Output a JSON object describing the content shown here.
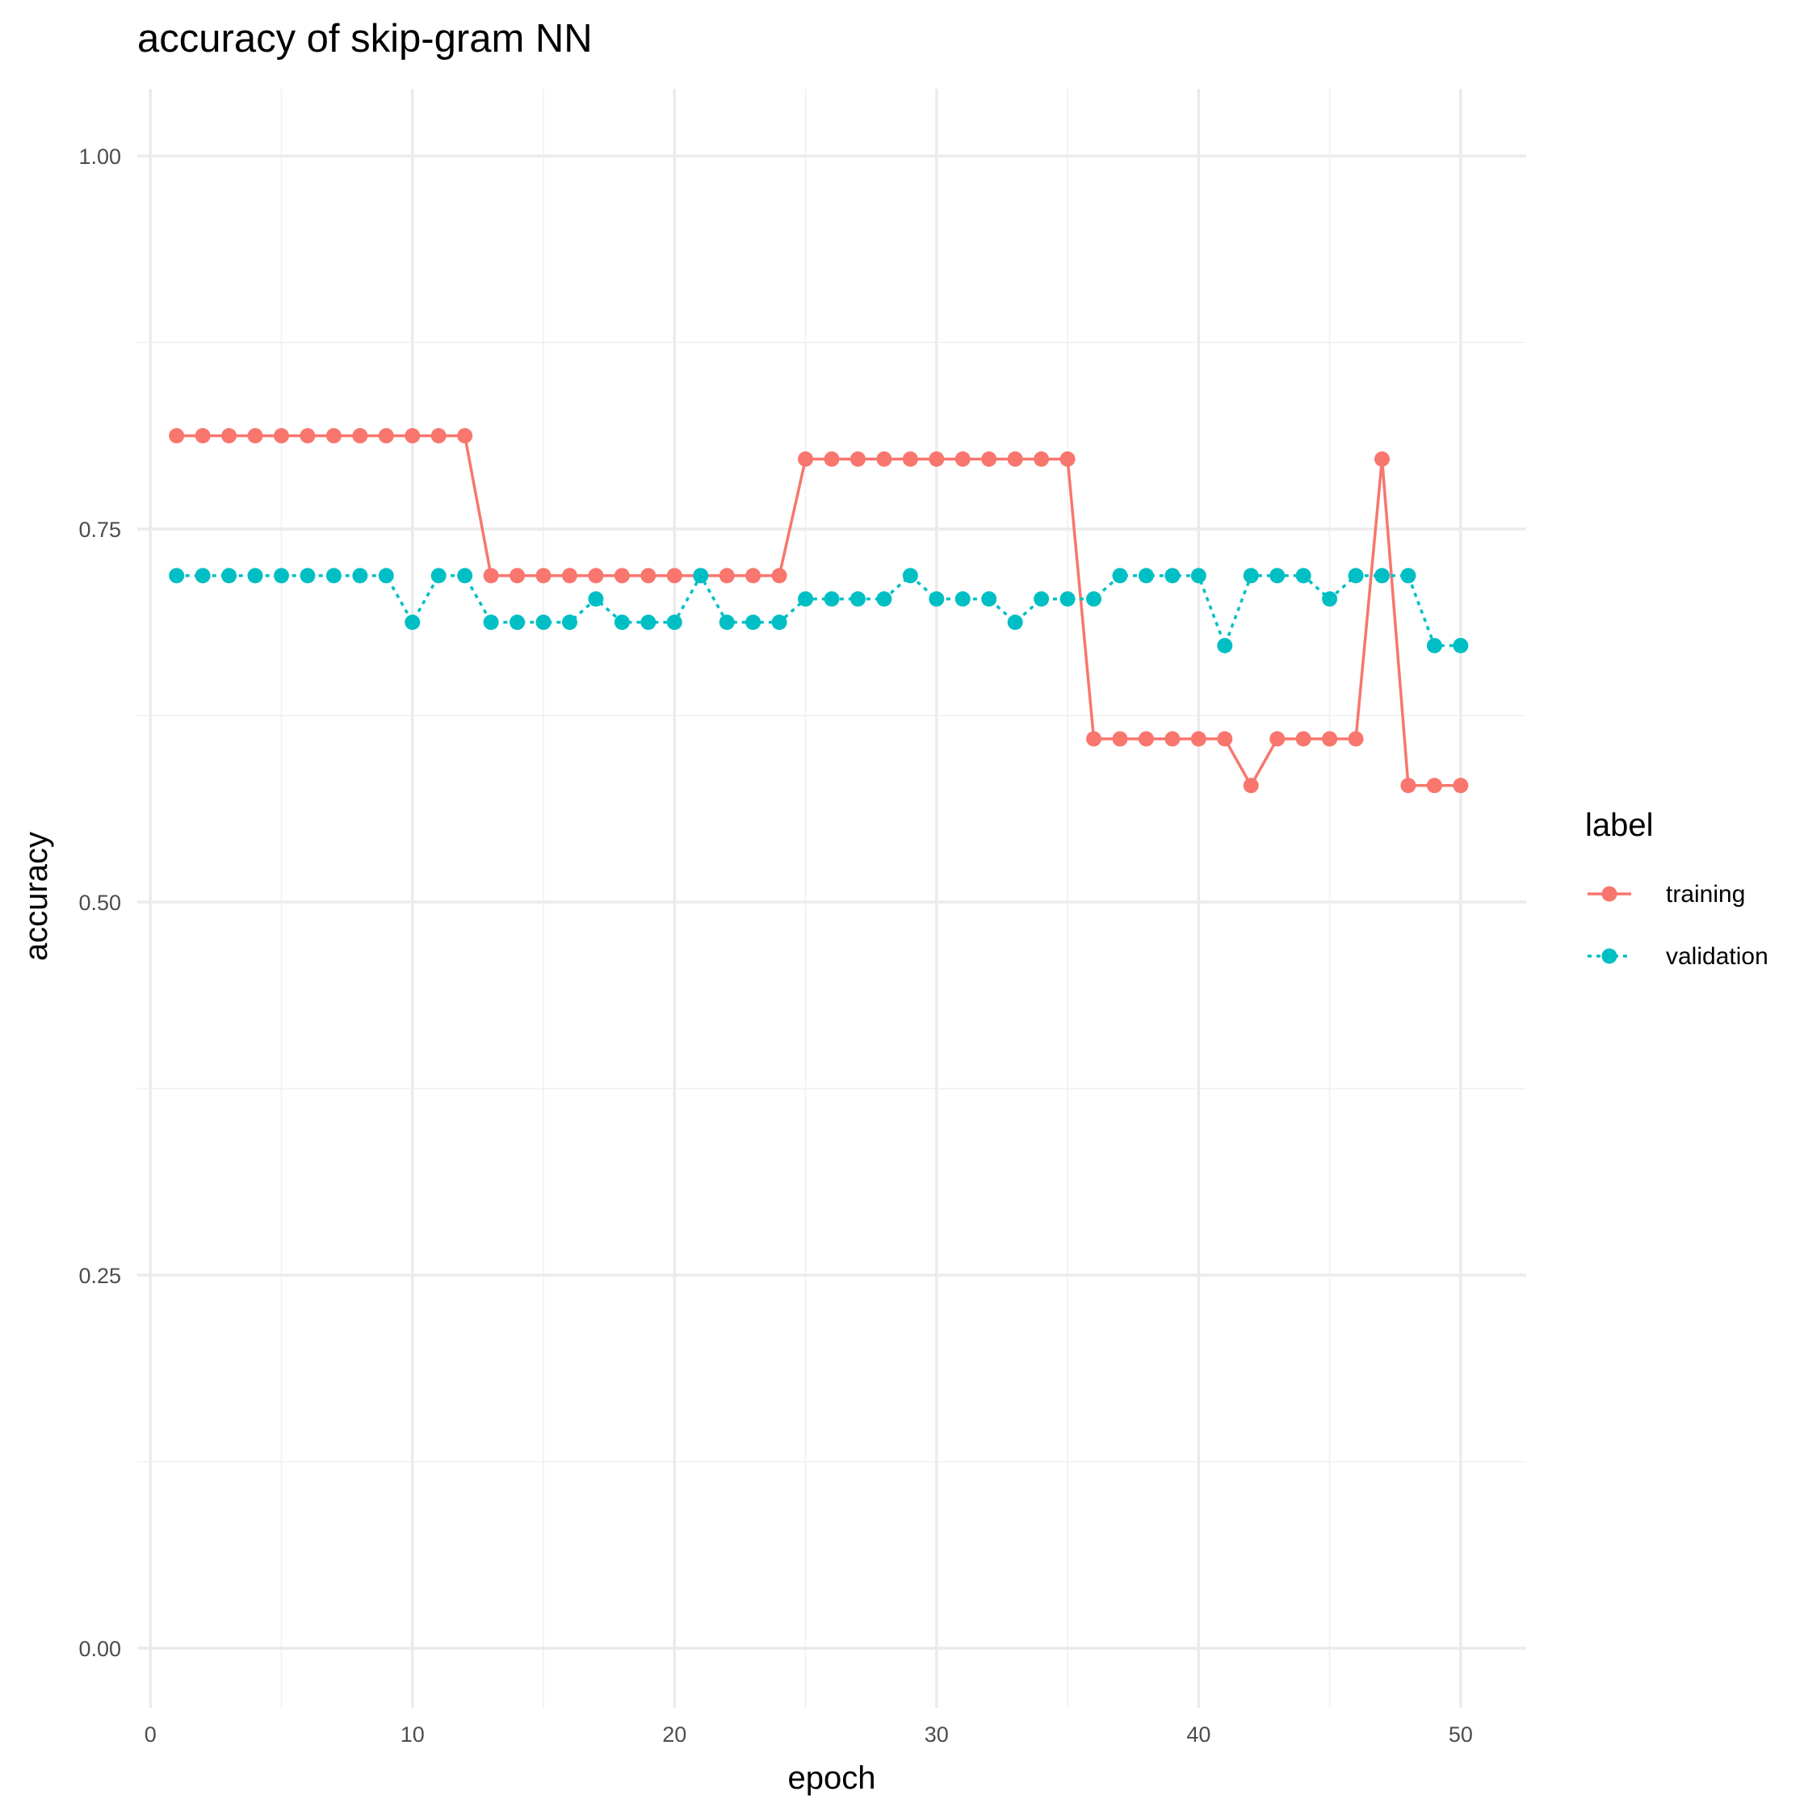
{
  "chart_data": {
    "type": "line",
    "title": "accuracy of skip-gram NN",
    "xlabel": "epoch",
    "ylabel": "accuracy",
    "xlim": [
      -0.5,
      52.5
    ],
    "ylim": [
      -0.04,
      1.045
    ],
    "x_ticks": [
      0,
      10,
      20,
      30,
      40,
      50
    ],
    "x_tick_labels": [
      "0",
      "10",
      "20",
      "30",
      "40",
      "50"
    ],
    "y_ticks": [
      0,
      0.25,
      0.5,
      0.75,
      1
    ],
    "y_tick_labels": [
      "0.00",
      "0.25",
      "0.50",
      "0.75",
      "1.00"
    ],
    "grid": true,
    "legend": {
      "title": "label",
      "position": "right"
    },
    "x": [
      1,
      2,
      3,
      4,
      5,
      6,
      7,
      8,
      9,
      10,
      11,
      12,
      13,
      14,
      15,
      16,
      17,
      18,
      19,
      20,
      21,
      22,
      23,
      24,
      25,
      26,
      27,
      28,
      29,
      30,
      31,
      32,
      33,
      34,
      35,
      36,
      37,
      38,
      39,
      40,
      41,
      42,
      43,
      44,
      45,
      46,
      47,
      48,
      49,
      50
    ],
    "series": [
      {
        "name": "training",
        "color": "#F8766D",
        "line_style": "solid",
        "values": [
          0.8125,
          0.8125,
          0.8125,
          0.8125,
          0.8125,
          0.8125,
          0.8125,
          0.8125,
          0.8125,
          0.8125,
          0.8125,
          0.8125,
          0.71875,
          0.71875,
          0.71875,
          0.71875,
          0.71875,
          0.71875,
          0.71875,
          0.71875,
          0.71875,
          0.71875,
          0.71875,
          0.71875,
          0.796875,
          0.796875,
          0.796875,
          0.796875,
          0.796875,
          0.796875,
          0.796875,
          0.796875,
          0.796875,
          0.796875,
          0.796875,
          0.609375,
          0.609375,
          0.609375,
          0.609375,
          0.609375,
          0.609375,
          0.578125,
          0.609375,
          0.609375,
          0.609375,
          0.609375,
          0.796875,
          0.578125,
          0.578125,
          0.578125
        ]
      },
      {
        "name": "validation",
        "color": "#00BFC4",
        "line_style": "dotted",
        "values": [
          0.71875,
          0.71875,
          0.71875,
          0.71875,
          0.71875,
          0.71875,
          0.71875,
          0.71875,
          0.71875,
          0.6875,
          0.71875,
          0.71875,
          0.6875,
          0.6875,
          0.6875,
          0.6875,
          0.703125,
          0.6875,
          0.6875,
          0.6875,
          0.71875,
          0.6875,
          0.6875,
          0.6875,
          0.703125,
          0.703125,
          0.703125,
          0.703125,
          0.71875,
          0.703125,
          0.703125,
          0.703125,
          0.6875,
          0.703125,
          0.703125,
          0.703125,
          0.71875,
          0.71875,
          0.71875,
          0.71875,
          0.671875,
          0.71875,
          0.71875,
          0.71875,
          0.703125,
          0.71875,
          0.71875,
          0.71875,
          0.671875,
          0.671875
        ]
      }
    ]
  }
}
